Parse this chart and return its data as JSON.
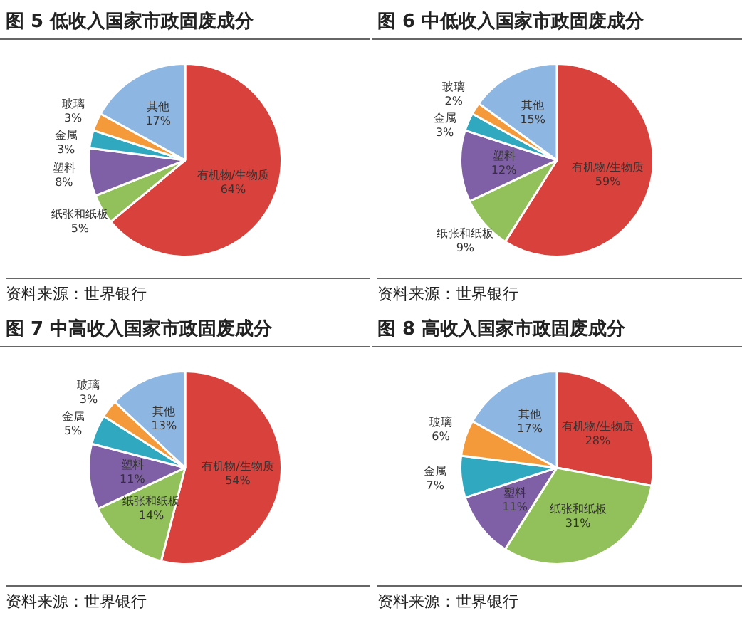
{
  "chart_data": [
    {
      "type": "pie",
      "title": "图 5 低收入国家市政固废成分",
      "categories": [
        "有机物/生物质",
        "纸张和纸板",
        "塑料",
        "金属",
        "玻璃",
        "其他"
      ],
      "values": [
        64,
        5,
        8,
        3,
        3,
        17
      ],
      "value_labels": [
        "64%",
        "5%",
        "8%",
        "3%",
        "3%",
        "17%"
      ],
      "colors": [
        "#d9413c",
        "#92c05a",
        "#7f5fa6",
        "#2fa8c0",
        "#f49a3a",
        "#8db7e2"
      ],
      "legend": false,
      "annotations": [
        "资料来源：世界银行"
      ]
    },
    {
      "type": "pie",
      "title": "图 6 中低收入国家市政固废成分",
      "categories": [
        "有机物/生物质",
        "纸张和纸板",
        "塑料",
        "金属",
        "玻璃",
        "其他"
      ],
      "values": [
        59,
        9,
        12,
        3,
        2,
        15
      ],
      "value_labels": [
        "59%",
        "9%",
        "12%",
        "3%",
        "2%",
        "15%"
      ],
      "colors": [
        "#d9413c",
        "#92c05a",
        "#7f5fa6",
        "#2fa8c0",
        "#f49a3a",
        "#8db7e2"
      ],
      "legend": false,
      "annotations": [
        "资料来源：世界银行"
      ]
    },
    {
      "type": "pie",
      "title": "图 7 中高收入国家市政固废成分",
      "categories": [
        "有机物/生物质",
        "纸张和纸板",
        "塑料",
        "金属",
        "玻璃",
        "其他"
      ],
      "values": [
        54,
        14,
        11,
        5,
        3,
        13
      ],
      "value_labels": [
        "54%",
        "14%",
        "11%",
        "5%",
        "3%",
        "13%"
      ],
      "colors": [
        "#d9413c",
        "#92c05a",
        "#7f5fa6",
        "#2fa8c0",
        "#f49a3a",
        "#8db7e2"
      ],
      "legend": false,
      "annotations": [
        "资料来源：世界银行"
      ]
    },
    {
      "type": "pie",
      "title": "图 8 高收入国家市政固废成分",
      "categories": [
        "有机物/生物质",
        "纸张和纸板",
        "塑料",
        "金属",
        "玻璃",
        "其他"
      ],
      "values": [
        28,
        31,
        11,
        7,
        6,
        17
      ],
      "value_labels": [
        "28%",
        "31%",
        "11%",
        "7%",
        "6%",
        "17%"
      ],
      "colors": [
        "#d9413c",
        "#92c05a",
        "#7f5fa6",
        "#2fa8c0",
        "#f49a3a",
        "#8db7e2"
      ],
      "legend": false,
      "annotations": [
        "资料来源：世界银行"
      ]
    }
  ]
}
